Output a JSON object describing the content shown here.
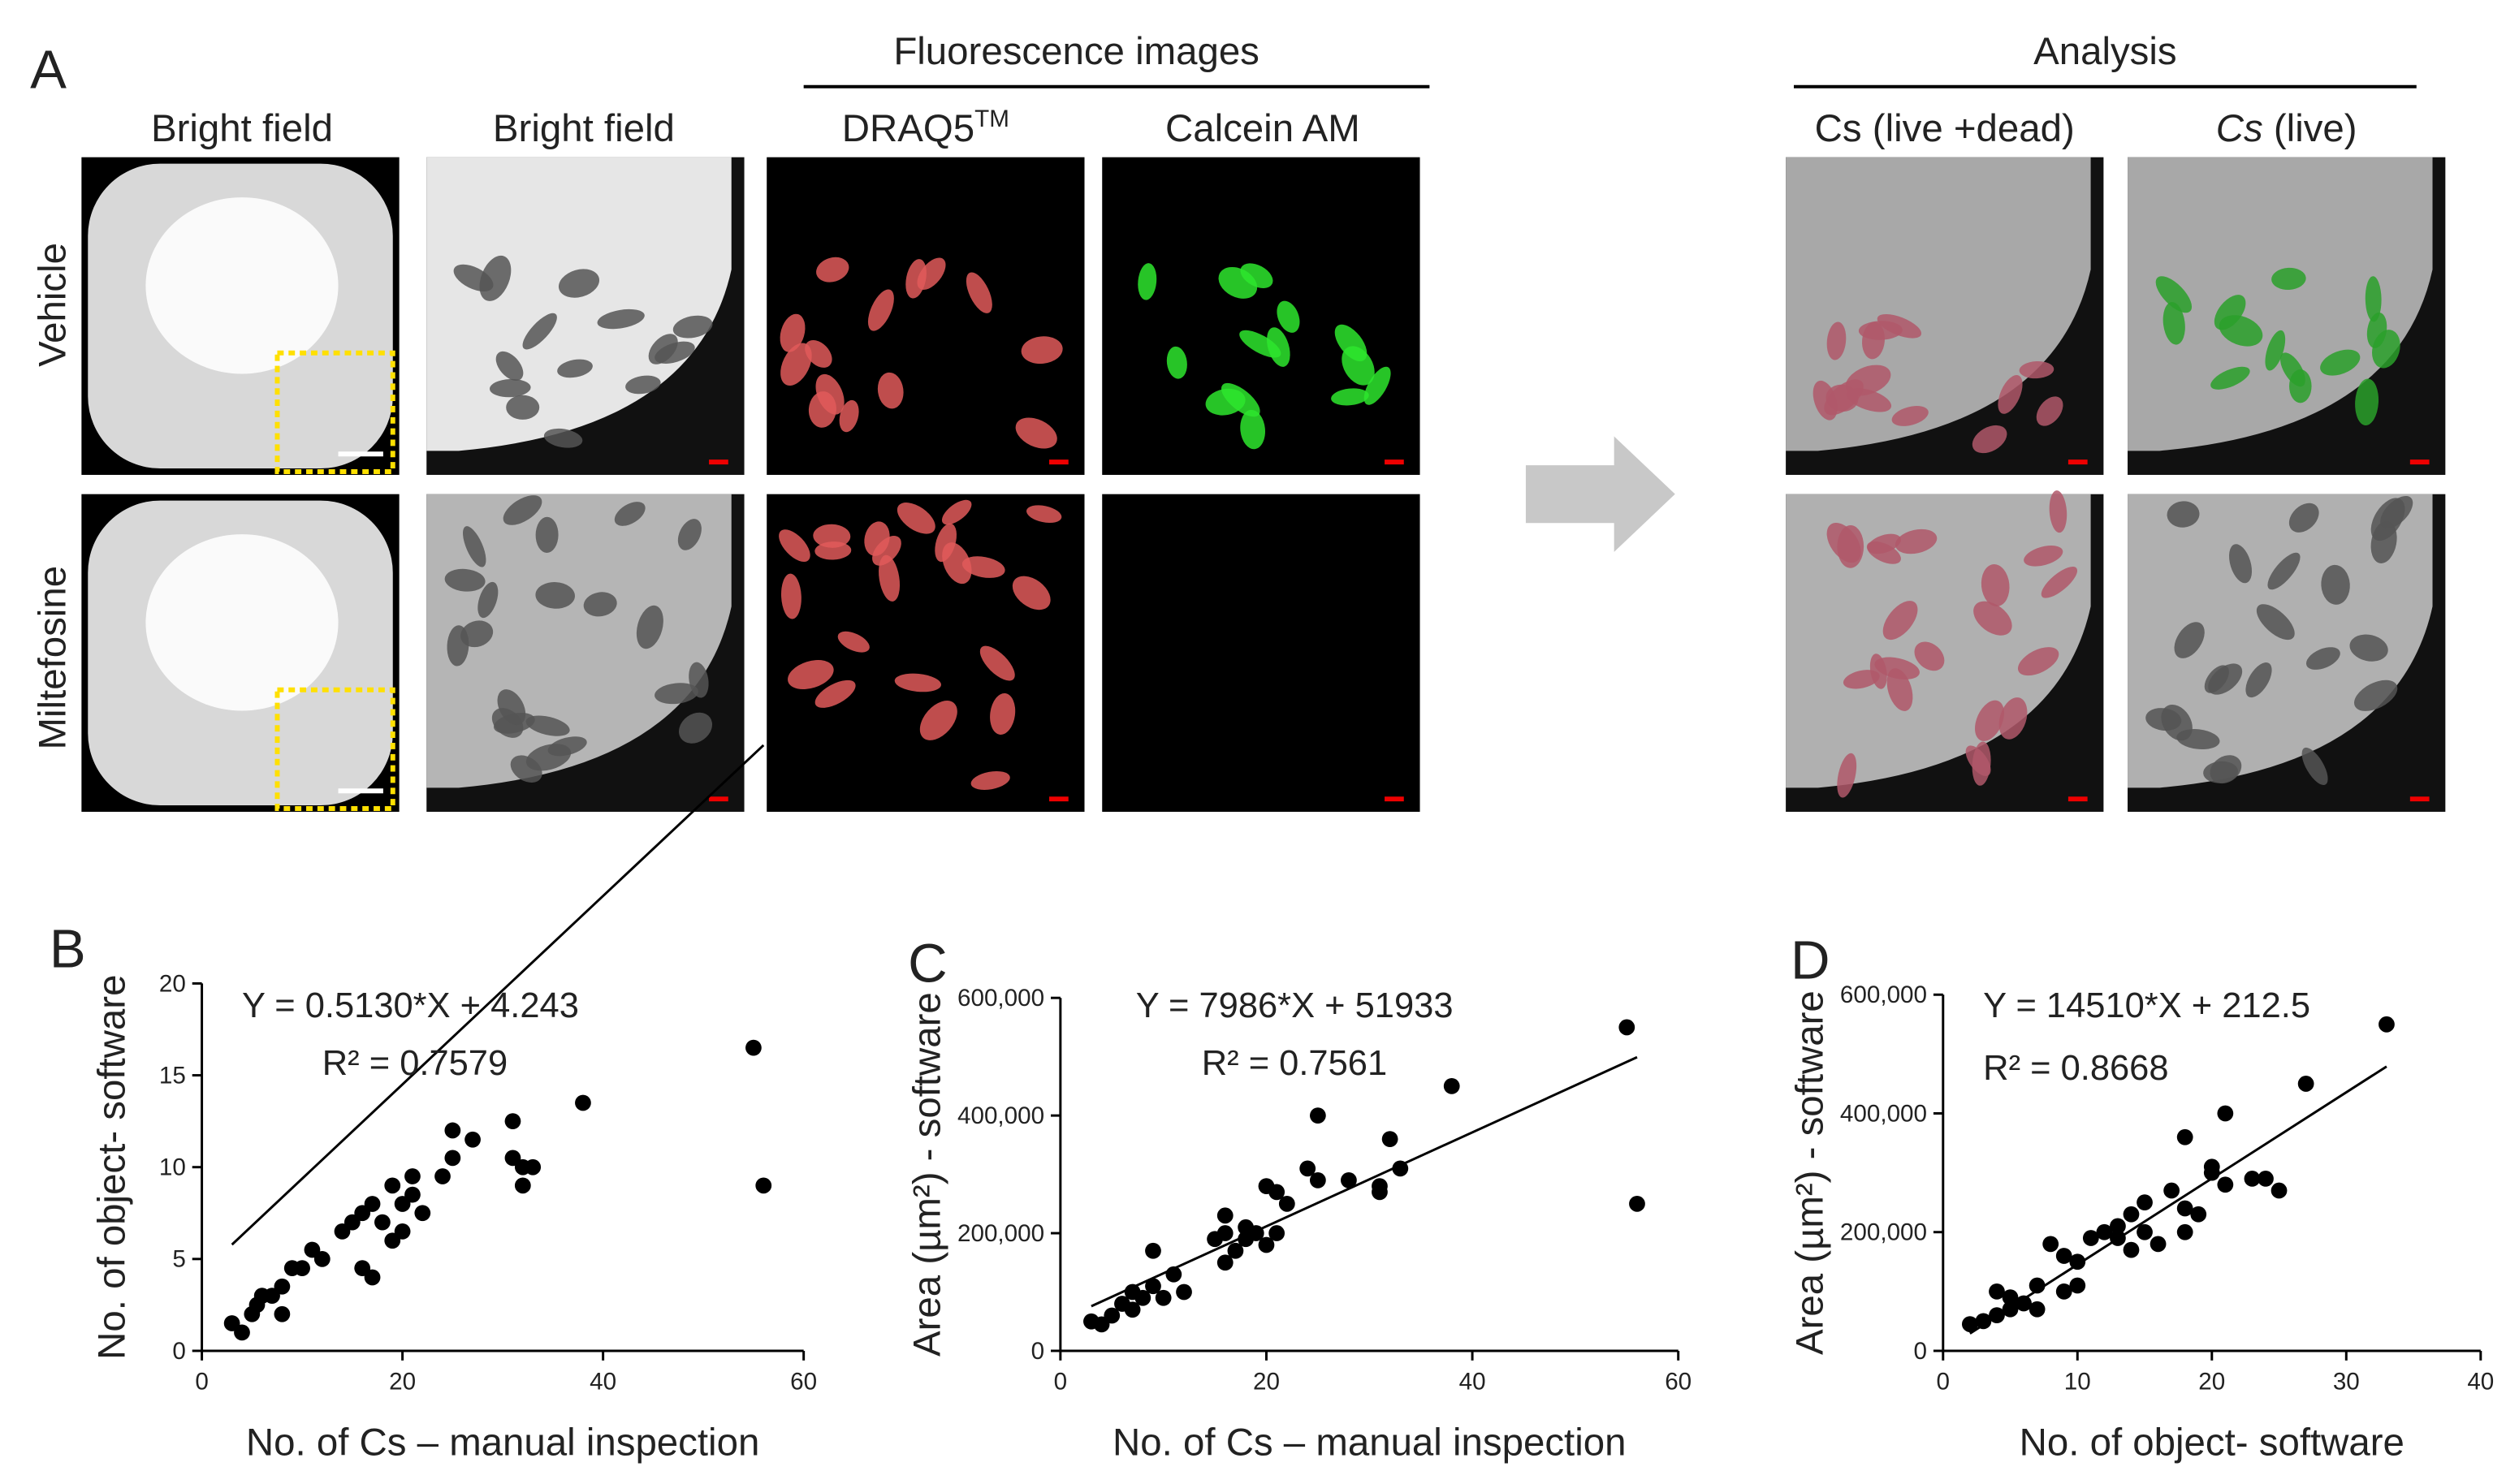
{
  "panel_a": {
    "panel": "A",
    "col_bright_1": "Bright field",
    "col_bright_2": "Bright field",
    "group_fluorescence": "Fluorescence images",
    "col_draq5": "DRAQ5",
    "col_draq5_sup": "TM",
    "col_calcein": "Calcein AM",
    "group_analysis": "Analysis",
    "col_live_dead": "Cs (live +dead)",
    "col_live_italic": "Cs",
    "col_live_rest": " (live)",
    "row_vehicle": "Vehicle",
    "row_miltefosine": "Miltefosine"
  },
  "chart_data": [
    {
      "type": "scatter",
      "panel": "B",
      "xlabel": "No. of Cs – manual inspection",
      "ylabel": "No. of object- software",
      "xlim": [
        0,
        60
      ],
      "xticks": [
        0,
        20,
        40,
        60
      ],
      "ylim": [
        0,
        20
      ],
      "yticks": [
        0,
        5,
        10,
        15,
        20
      ],
      "color": "#000000",
      "x": [
        3,
        4,
        5,
        5.5,
        6,
        7,
        8,
        8,
        9,
        10,
        11,
        12,
        14,
        15,
        16,
        16,
        17,
        17,
        18,
        19,
        19,
        20,
        20,
        21,
        21,
        22,
        24,
        25,
        25,
        27,
        31,
        31,
        32,
        32,
        33,
        38,
        55,
        56
      ],
      "values": [
        1.5,
        1,
        2,
        2.5,
        3,
        3,
        3.5,
        2,
        4.5,
        4.5,
        5.5,
        5,
        6.5,
        7,
        7.5,
        4.5,
        4,
        8,
        7,
        6,
        9,
        6.5,
        8,
        9.5,
        8.5,
        7.5,
        9.5,
        12,
        10.5,
        11.5,
        12.5,
        10.5,
        9,
        10,
        10,
        13.5,
        16.5,
        9
      ],
      "fit": {
        "slope": 0.513,
        "intercept": 4.243,
        "label": "Y = 0.5130*X + 4.243",
        "r2_label": "R² = 0.7579"
      }
    },
    {
      "type": "scatter",
      "panel": "C",
      "xlabel": "No. of Cs – manual inspection",
      "ylabel": "Area (µm²) - software",
      "xlim": [
        0,
        60
      ],
      "xticks": [
        0,
        20,
        40,
        60
      ],
      "ylim": [
        0,
        600000
      ],
      "yticks": [
        0,
        {
          "value": 200000,
          "label": "200,000"
        },
        {
          "value": 400000,
          "label": "400,000"
        },
        {
          "value": 600000,
          "label": "600,000"
        }
      ],
      "color": "#000000",
      "x": [
        3,
        4,
        5,
        6,
        7,
        7,
        8,
        9,
        9,
        10,
        11,
        12,
        15,
        16,
        16,
        16,
        17,
        18,
        18,
        19,
        20,
        20,
        21,
        21,
        22,
        24,
        25,
        25,
        28,
        31,
        31,
        32,
        33,
        38,
        55,
        56
      ],
      "values": [
        50000,
        45000,
        60000,
        80000,
        70000,
        100000,
        90000,
        110000,
        170000,
        90000,
        130000,
        100000,
        190000,
        200000,
        150000,
        230000,
        170000,
        210000,
        190000,
        200000,
        180000,
        280000,
        200000,
        270000,
        250000,
        310000,
        400000,
        290000,
        290000,
        270000,
        280000,
        360000,
        310000,
        450000,
        550000,
        250000
      ],
      "fit": {
        "slope": 7986,
        "intercept": 51933,
        "label": "Y = 7986*X + 51933",
        "r2_label": "R² = 0.7561"
      }
    },
    {
      "type": "scatter",
      "panel": "D",
      "xlabel": "No. of object- software",
      "ylabel": "Area (µm²) - software",
      "xlim": [
        0,
        40
      ],
      "xticks": [
        0,
        10,
        20,
        30,
        40
      ],
      "ylim": [
        0,
        600000
      ],
      "yticks": [
        0,
        {
          "value": 200000,
          "label": "200,000"
        },
        {
          "value": 400000,
          "label": "400,000"
        },
        {
          "value": 600000,
          "label": "600,000"
        }
      ],
      "color": "#000000",
      "x": [
        2,
        3,
        4,
        4,
        5,
        5,
        6,
        7,
        7,
        8,
        9,
        9,
        10,
        10,
        11,
        12,
        13,
        13,
        14,
        14,
        15,
        15,
        16,
        17,
        18,
        18,
        18,
        19,
        20,
        20,
        21,
        21,
        23,
        24,
        25,
        27,
        33
      ],
      "values": [
        45000,
        50000,
        60000,
        100000,
        70000,
        90000,
        80000,
        70000,
        110000,
        180000,
        100000,
        160000,
        110000,
        150000,
        190000,
        200000,
        210000,
        190000,
        170000,
        230000,
        200000,
        250000,
        180000,
        270000,
        240000,
        360000,
        200000,
        230000,
        300000,
        310000,
        400000,
        280000,
        290000,
        290000,
        270000,
        450000,
        550000
      ],
      "fit": {
        "slope": 14510,
        "intercept": 212.5,
        "label": "Y = 14510*X + 212.5",
        "r2_label": "R² = 0.8668"
      }
    }
  ]
}
